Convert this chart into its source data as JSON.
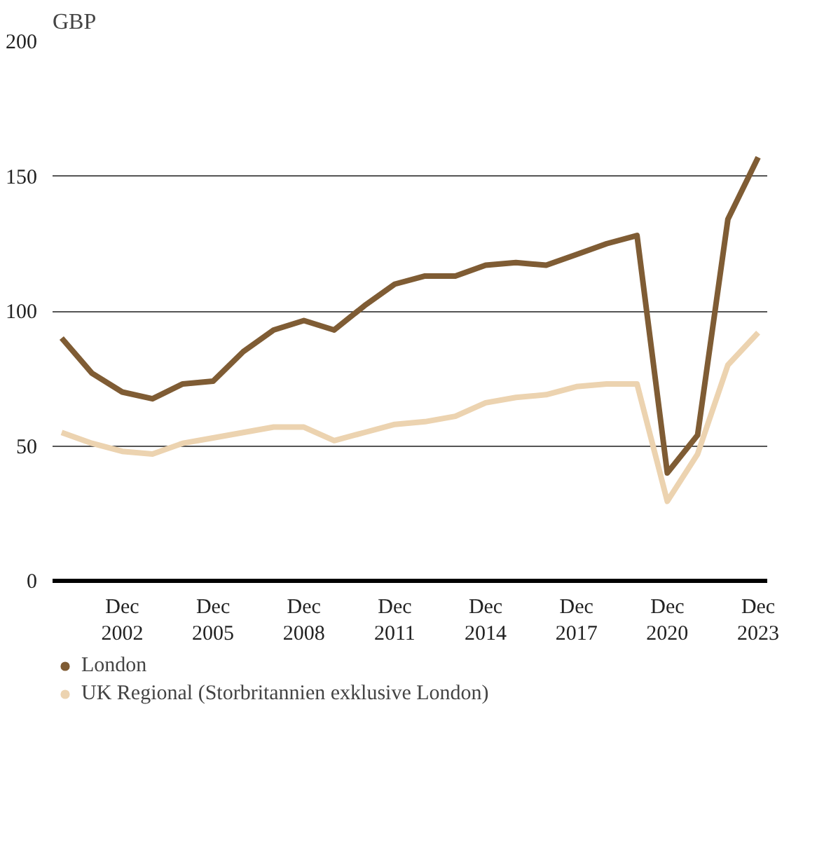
{
  "chart_data": {
    "type": "line",
    "ylabel": "GBP",
    "categories": [
      null,
      null,
      "Dec 2002",
      null,
      null,
      "Dec 2005",
      null,
      null,
      "Dec 2008",
      null,
      null,
      "Dec 2011",
      null,
      null,
      "Dec 2014",
      null,
      null,
      "Dec 2017",
      null,
      null,
      "Dec 2020",
      null,
      null,
      "Dec 2023"
    ],
    "series": [
      {
        "name": "London",
        "color": "#7f5c34",
        "values": [
          90,
          77,
          70,
          67.5,
          73,
          74,
          85,
          93,
          96.5,
          93,
          102,
          110,
          113,
          113,
          117,
          118,
          117,
          121,
          125,
          128,
          40,
          54,
          134,
          157
        ]
      },
      {
        "name": "UK Regional (Storbritannien exklusive London)",
        "color": "#ecd3b0",
        "values": [
          55,
          51,
          48,
          47,
          51,
          53,
          55,
          57,
          57,
          52,
          55,
          58,
          59,
          61,
          66,
          68,
          69,
          72,
          73,
          73,
          29.5,
          47,
          80,
          92
        ]
      }
    ],
    "ylim": [
      0,
      200
    ],
    "yticks": [
      0,
      50,
      100,
      150,
      200
    ],
    "grid": "y",
    "legend": "bottom",
    "line_style": "solid"
  }
}
